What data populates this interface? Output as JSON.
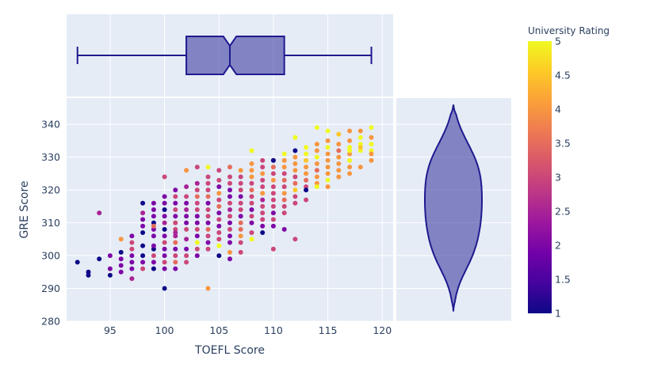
{
  "chart_data": {
    "type": "scatter",
    "x_label": "TOEFL Score",
    "y_label": "GRE Score",
    "x_range": [
      91,
      121
    ],
    "y_range": [
      280,
      348
    ],
    "x_ticks": [
      95,
      100,
      105,
      110,
      115,
      120
    ],
    "y_ticks": [
      280,
      290,
      300,
      310,
      320,
      330,
      340
    ],
    "color": {
      "title": "University Rating",
      "range": [
        1,
        5
      ],
      "ticks": [
        "1",
        "1.5",
        "2",
        "2.5",
        "3",
        "3.5",
        "4",
        "4.5",
        "5"
      ],
      "scale": [
        "#0d0887",
        "#46039f",
        "#7201a8",
        "#9c179e",
        "#bd3786",
        "#d8576b",
        "#ed7953",
        "#fb9f3a",
        "#fdca26",
        "#f0f921"
      ]
    },
    "points": [
      [
        92,
        298,
        1
      ],
      [
        93,
        295,
        1
      ],
      [
        93,
        294,
        1
      ],
      [
        94,
        299,
        1
      ],
      [
        94,
        313,
        2.5
      ],
      [
        95,
        300,
        2
      ],
      [
        95,
        296,
        2
      ],
      [
        95,
        294,
        1
      ],
      [
        96,
        301,
        1
      ],
      [
        96,
        299,
        2
      ],
      [
        96,
        297,
        2
      ],
      [
        96,
        295,
        2
      ],
      [
        96,
        305,
        4
      ],
      [
        97,
        304,
        3
      ],
      [
        97,
        302,
        3
      ],
      [
        97,
        300,
        2
      ],
      [
        97,
        298,
        2
      ],
      [
        97,
        296,
        2
      ],
      [
        97,
        293,
        2.5
      ],
      [
        97,
        306,
        2
      ],
      [
        98,
        316,
        1
      ],
      [
        98,
        313,
        2.5
      ],
      [
        98,
        311,
        2
      ],
      [
        98,
        309,
        2
      ],
      [
        98,
        307,
        1
      ],
      [
        98,
        303,
        1
      ],
      [
        98,
        300,
        1
      ],
      [
        98,
        298,
        2
      ],
      [
        98,
        296,
        3
      ],
      [
        99,
        316,
        2
      ],
      [
        99,
        314,
        2
      ],
      [
        99,
        312,
        2
      ],
      [
        99,
        310,
        1
      ],
      [
        99,
        308,
        2
      ],
      [
        99,
        306,
        2
      ],
      [
        99,
        302,
        1
      ],
      [
        99,
        300,
        3
      ],
      [
        99,
        298,
        2
      ],
      [
        99,
        296,
        1
      ],
      [
        99,
        303,
        2
      ],
      [
        99,
        309,
        3.5
      ],
      [
        100,
        318,
        2
      ],
      [
        100,
        316,
        2
      ],
      [
        100,
        314,
        1
      ],
      [
        100,
        312,
        2
      ],
      [
        100,
        310,
        2.5
      ],
      [
        100,
        308,
        1
      ],
      [
        100,
        306,
        2
      ],
      [
        100,
        304,
        3
      ],
      [
        100,
        302,
        2
      ],
      [
        100,
        300,
        2
      ],
      [
        100,
        298,
        3
      ],
      [
        100,
        296,
        2
      ],
      [
        100,
        290,
        1
      ],
      [
        100,
        324,
        3
      ],
      [
        101,
        320,
        2
      ],
      [
        101,
        318,
        3
      ],
      [
        101,
        316,
        2
      ],
      [
        101,
        314,
        3
      ],
      [
        101,
        312,
        2
      ],
      [
        101,
        310,
        3
      ],
      [
        101,
        308,
        3
      ],
      [
        101,
        306,
        2.5
      ],
      [
        101,
        304,
        3.5
      ],
      [
        101,
        302,
        2
      ],
      [
        101,
        300,
        3
      ],
      [
        101,
        298,
        3.5
      ],
      [
        101,
        296,
        2
      ],
      [
        101,
        307,
        2.5
      ],
      [
        102,
        326,
        4
      ],
      [
        102,
        321,
        2.5
      ],
      [
        102,
        318,
        3
      ],
      [
        102,
        316,
        2
      ],
      [
        102,
        314,
        2.5
      ],
      [
        102,
        312,
        2
      ],
      [
        102,
        310,
        2
      ],
      [
        102,
        308,
        3
      ],
      [
        102,
        305,
        2.5
      ],
      [
        102,
        302,
        2
      ],
      [
        102,
        300,
        3
      ],
      [
        102,
        298,
        3
      ],
      [
        103,
        327,
        3
      ],
      [
        103,
        322,
        2.5
      ],
      [
        103,
        320,
        3
      ],
      [
        103,
        318,
        3.5
      ],
      [
        103,
        316,
        3
      ],
      [
        103,
        314,
        3
      ],
      [
        103,
        312,
        2
      ],
      [
        103,
        310,
        2
      ],
      [
        103,
        308,
        3
      ],
      [
        103,
        306,
        2
      ],
      [
        103,
        304,
        5
      ],
      [
        103,
        302,
        3
      ],
      [
        103,
        300,
        2
      ],
      [
        104,
        327,
        5
      ],
      [
        104,
        324,
        3
      ],
      [
        104,
        322,
        3
      ],
      [
        104,
        320,
        3
      ],
      [
        104,
        318,
        3.5
      ],
      [
        104,
        316,
        2
      ],
      [
        104,
        314,
        3
      ],
      [
        104,
        312,
        3
      ],
      [
        104,
        310,
        2
      ],
      [
        104,
        308,
        3.5
      ],
      [
        104,
        306,
        3
      ],
      [
        104,
        304,
        2
      ],
      [
        104,
        302,
        3
      ],
      [
        104,
        290,
        4
      ],
      [
        105,
        326,
        3
      ],
      [
        105,
        323,
        3
      ],
      [
        105,
        321,
        2
      ],
      [
        105,
        319,
        4
      ],
      [
        105,
        317,
        3
      ],
      [
        105,
        315,
        3.5
      ],
      [
        105,
        313,
        2
      ],
      [
        105,
        311,
        3
      ],
      [
        105,
        309,
        2
      ],
      [
        105,
        307,
        3
      ],
      [
        105,
        305,
        3
      ],
      [
        105,
        303,
        5
      ],
      [
        105,
        300,
        1
      ],
      [
        106,
        327,
        3.5
      ],
      [
        106,
        324,
        3
      ],
      [
        106,
        322,
        3
      ],
      [
        106,
        320,
        2
      ],
      [
        106,
        318,
        2
      ],
      [
        106,
        316,
        3
      ],
      [
        106,
        314,
        2.5
      ],
      [
        106,
        312,
        3
      ],
      [
        106,
        310,
        2
      ],
      [
        106,
        308,
        3
      ],
      [
        106,
        306,
        2
      ],
      [
        106,
        304,
        2
      ],
      [
        106,
        301,
        4
      ],
      [
        106,
        299,
        2
      ],
      [
        107,
        326,
        4
      ],
      [
        107,
        324,
        3
      ],
      [
        107,
        322,
        3
      ],
      [
        107,
        320,
        3
      ],
      [
        107,
        318,
        2
      ],
      [
        107,
        316,
        3
      ],
      [
        107,
        314,
        3
      ],
      [
        107,
        312,
        2
      ],
      [
        107,
        310,
        3.5
      ],
      [
        107,
        308,
        3.5
      ],
      [
        107,
        306,
        4
      ],
      [
        107,
        304,
        3
      ],
      [
        107,
        301,
        3
      ],
      [
        108,
        332,
        5
      ],
      [
        108,
        328,
        4
      ],
      [
        108,
        326,
        4
      ],
      [
        108,
        324,
        4
      ],
      [
        108,
        322,
        3
      ],
      [
        108,
        320,
        3.5
      ],
      [
        108,
        318,
        3
      ],
      [
        108,
        316,
        3
      ],
      [
        108,
        314,
        2
      ],
      [
        108,
        312,
        3
      ],
      [
        108,
        310,
        2
      ],
      [
        108,
        307,
        3
      ],
      [
        108,
        305,
        5
      ],
      [
        109,
        329,
        3
      ],
      [
        109,
        327,
        3
      ],
      [
        109,
        325,
        4
      ],
      [
        109,
        323,
        3
      ],
      [
        109,
        321,
        3
      ],
      [
        109,
        319,
        4
      ],
      [
        109,
        317,
        2.5
      ],
      [
        109,
        315,
        3
      ],
      [
        109,
        313,
        3
      ],
      [
        109,
        311,
        3
      ],
      [
        109,
        309,
        2
      ],
      [
        109,
        307,
        1
      ],
      [
        110,
        329,
        2
      ],
      [
        110,
        327,
        3.5
      ],
      [
        110,
        325,
        3
      ],
      [
        110,
        323,
        4
      ],
      [
        110,
        321,
        3
      ],
      [
        110,
        319,
        3
      ],
      [
        110,
        317,
        3
      ],
      [
        110,
        315,
        3
      ],
      [
        110,
        313,
        2
      ],
      [
        110,
        311,
        3
      ],
      [
        110,
        309,
        2
      ],
      [
        110,
        302,
        3
      ],
      [
        110,
        329,
        1
      ],
      [
        111,
        331,
        5
      ],
      [
        111,
        329,
        4
      ],
      [
        111,
        327,
        4
      ],
      [
        111,
        325,
        3
      ],
      [
        111,
        323,
        3.5
      ],
      [
        111,
        321,
        3
      ],
      [
        111,
        319,
        4
      ],
      [
        111,
        317,
        3.5
      ],
      [
        111,
        315,
        3
      ],
      [
        111,
        313,
        3
      ],
      [
        111,
        308,
        2
      ],
      [
        112,
        336,
        5
      ],
      [
        112,
        332,
        1
      ],
      [
        112,
        330,
        4
      ],
      [
        112,
        328,
        4
      ],
      [
        112,
        326,
        4
      ],
      [
        112,
        324,
        3
      ],
      [
        112,
        322,
        3.5
      ],
      [
        112,
        320,
        4.5
      ],
      [
        112,
        318,
        3
      ],
      [
        112,
        316,
        3
      ],
      [
        112,
        305,
        3
      ],
      [
        113,
        333,
        5
      ],
      [
        113,
        331,
        5
      ],
      [
        113,
        329,
        4.5
      ],
      [
        113,
        327,
        4
      ],
      [
        113,
        325,
        4
      ],
      [
        113,
        323,
        3.5
      ],
      [
        113,
        321,
        3
      ],
      [
        113,
        320,
        1
      ],
      [
        113,
        317,
        3
      ],
      [
        114,
        339,
        5
      ],
      [
        114,
        334,
        4
      ],
      [
        114,
        332,
        4
      ],
      [
        114,
        330,
        5
      ],
      [
        114,
        328,
        4
      ],
      [
        114,
        326,
        3.5
      ],
      [
        114,
        324,
        4
      ],
      [
        114,
        322,
        4
      ],
      [
        114,
        321,
        5
      ],
      [
        115,
        338,
        5
      ],
      [
        115,
        335,
        4
      ],
      [
        115,
        333,
        5
      ],
      [
        115,
        331,
        4
      ],
      [
        115,
        329,
        4
      ],
      [
        115,
        327,
        4
      ],
      [
        115,
        325,
        4
      ],
      [
        115,
        323,
        5
      ],
      [
        115,
        321,
        4
      ],
      [
        116,
        334,
        4
      ],
      [
        116,
        332,
        3.5
      ],
      [
        116,
        330,
        4
      ],
      [
        116,
        328,
        4
      ],
      [
        116,
        326,
        4
      ],
      [
        116,
        324,
        4
      ],
      [
        116,
        337,
        4.5
      ],
      [
        117,
        338,
        4
      ],
      [
        117,
        335,
        4
      ],
      [
        117,
        333,
        5
      ],
      [
        117,
        331,
        4
      ],
      [
        117,
        329,
        5
      ],
      [
        117,
        327,
        4
      ],
      [
        117,
        325,
        4
      ],
      [
        117,
        332,
        5
      ],
      [
        118,
        338,
        4
      ],
      [
        118,
        336,
        5
      ],
      [
        118,
        334,
        5
      ],
      [
        118,
        332,
        5
      ],
      [
        118,
        327,
        4
      ],
      [
        118,
        333,
        4.5
      ],
      [
        119,
        339,
        5
      ],
      [
        119,
        336,
        4
      ],
      [
        119,
        334,
        5
      ],
      [
        119,
        332,
        5
      ],
      [
        119,
        329,
        4
      ],
      [
        119,
        331,
        4
      ]
    ],
    "box_x": {
      "min": 92,
      "q1": 102,
      "median": 106,
      "q3": 111,
      "max": 119,
      "notch_low": 105.4,
      "notch_high": 106.6
    },
    "violin_y": {
      "min": 283,
      "max": 346,
      "q1": 308,
      "median": 317,
      "q3": 325
    }
  }
}
